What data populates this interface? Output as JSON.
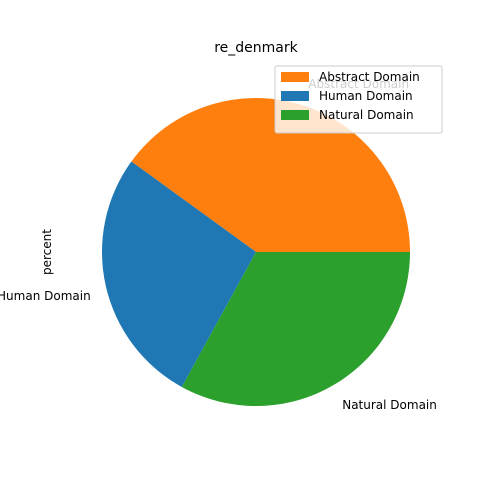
{
  "chart_data": {
    "type": "pie",
    "title": "re_denmark",
    "ylabel": "percent",
    "start_angle_deg": 0,
    "direction": "counterclockwise",
    "slices": [
      {
        "label": "Abstract Domain",
        "value": 40,
        "color": "#ff7f0e"
      },
      {
        "label": "Human Domain",
        "value": 27,
        "color": "#1f77b4"
      },
      {
        "label": "Natural Domain",
        "value": 33,
        "color": "#2ca02c"
      }
    ],
    "legend": {
      "position": "upper right",
      "entries": [
        {
          "label": "Abstract Domain",
          "color": "#ff7f0e"
        },
        {
          "label": "Human Domain",
          "color": "#1f77b4"
        },
        {
          "label": "Natural Domain",
          "color": "#2ca02c"
        }
      ]
    }
  }
}
